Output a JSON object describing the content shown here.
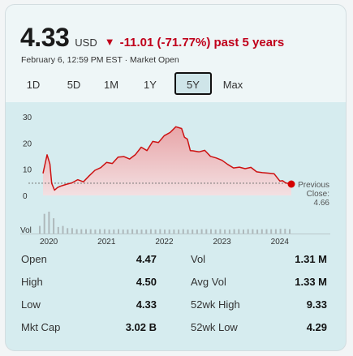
{
  "quote": {
    "price": "4.33",
    "currency": "USD",
    "change_arrow": "▼",
    "change": "-11.01 (-71.77%) past 5 years",
    "timestamp": "February 6, 12:59 PM EST · Market Open"
  },
  "ranges": [
    {
      "label": "1D",
      "active": false
    },
    {
      "label": "5D",
      "active": false
    },
    {
      "label": "1M",
      "active": false
    },
    {
      "label": "1Y",
      "active": false
    },
    {
      "label": "5Y",
      "active": true
    },
    {
      "label": "Max",
      "active": false
    }
  ],
  "chart_data": {
    "type": "area",
    "x_ticks": [
      "2020",
      "2021",
      "2022",
      "2023",
      "2024"
    ],
    "y_ticks": [
      "30",
      "20",
      "10",
      "0"
    ],
    "ylim": [
      0,
      30
    ],
    "volume_label": "Vol",
    "previous_close": {
      "label_line1": "Previous",
      "label_line2": "Close:",
      "value": "4.66",
      "y": 4.66
    },
    "colors": {
      "line": "#cc1111",
      "area_top": "#e8a5a8",
      "area_bottom": "#f3e0e2",
      "volume": "#aeb8bb",
      "marker": "#d40000"
    },
    "series": [
      {
        "x": [
          2019.9,
          2019.97,
          2020.02,
          2020.05,
          2020.1,
          2020.15,
          2020.2,
          2020.3,
          2020.4,
          2020.5,
          2020.6,
          2020.7,
          2020.8,
          2020.9,
          2021.0,
          2021.1,
          2021.2,
          2021.3,
          2021.4,
          2021.5,
          2021.6,
          2021.7,
          2021.8,
          2021.9,
          2022.0,
          2022.1,
          2022.2,
          2022.3,
          2022.35,
          2022.4,
          2022.45,
          2022.5,
          2022.6,
          2022.7,
          2022.8,
          2022.9,
          2023.0,
          2023.1,
          2023.2,
          2023.3,
          2023.4,
          2023.5,
          2023.6,
          2023.7,
          2023.8,
          2023.9,
          2024.0,
          2024.05,
          2024.1,
          2024.2
        ],
        "y": [
          8.4,
          15.5,
          12.0,
          4.6,
          2.0,
          3.0,
          3.5,
          4.2,
          4.8,
          6.0,
          5.2,
          7.5,
          9.6,
          10.6,
          12.6,
          12.2,
          14.6,
          14.8,
          13.9,
          15.6,
          18.4,
          17.1,
          20.6,
          20.2,
          22.8,
          24.0,
          26.2,
          25.5,
          22.2,
          21.5,
          17.1,
          17.0,
          16.6,
          17.2,
          14.9,
          14.3,
          13.4,
          11.8,
          10.5,
          10.8,
          10.2,
          10.7,
          9.0,
          8.7,
          8.5,
          8.3,
          5.5,
          5.6,
          4.8,
          4.33
        ]
      }
    ],
    "volume": [
      0.35,
      0.9,
      1.0,
      0.7,
      0.3,
      0.35,
      0.25,
      0.25,
      0.2,
      0.2,
      0.2,
      0.2,
      0.18,
      0.2,
      0.2,
      0.18,
      0.18,
      0.2,
      0.18,
      0.18,
      0.2,
      0.18,
      0.18,
      0.18,
      0.2,
      0.18,
      0.2,
      0.18,
      0.18,
      0.18,
      0.18,
      0.2,
      0.18,
      0.18,
      0.18,
      0.2,
      0.2,
      0.2,
      0.18,
      0.2,
      0.18,
      0.18,
      0.2,
      0.2,
      0.18,
      0.2,
      0.2,
      0.18,
      0.2,
      0.2,
      0.2,
      0.2,
      0.22,
      0.22,
      0.2
    ]
  },
  "stats": [
    {
      "label": "Open",
      "value": "4.47",
      "label2": "Vol",
      "value2": "1.31 M"
    },
    {
      "label": "High",
      "value": "4.50",
      "label2": "Avg Vol",
      "value2": "1.33 M"
    },
    {
      "label": "Low",
      "value": "4.33",
      "label2": "52wk High",
      "value2": "9.33"
    },
    {
      "label": "Mkt Cap",
      "value": "3.02 B",
      "label2": "52wk Low",
      "value2": "4.29"
    }
  ]
}
